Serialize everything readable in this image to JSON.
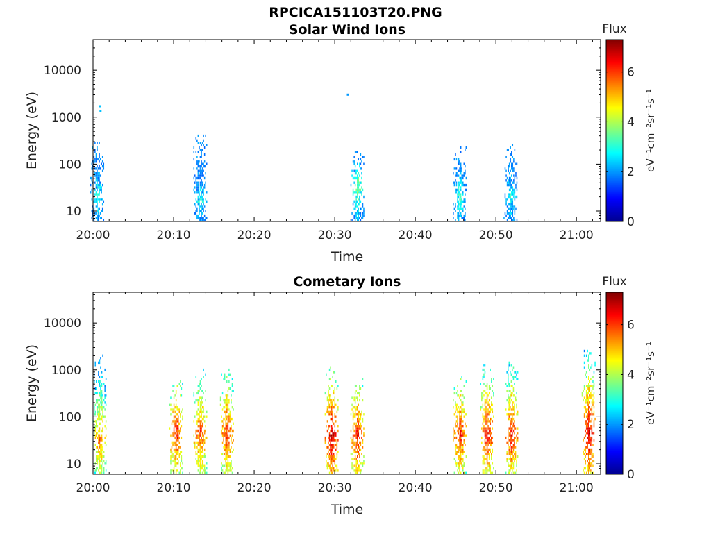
{
  "figure_title": "RPCICA151103T20.PNG",
  "colormap": [
    "#00008f",
    "#0000ff",
    "#0080ff",
    "#00ffff",
    "#80ff80",
    "#ffff00",
    "#ff8000",
    "#ff0000",
    "#800000"
  ],
  "chart_data": [
    {
      "type": "heatmap",
      "title": "Solar Wind Ions",
      "xlabel": "Time",
      "ylabel": "Energy (eV)",
      "xlim": [
        "20:00",
        "21:03"
      ],
      "xticks": [
        "20:00",
        "20:10",
        "20:20",
        "20:30",
        "20:40",
        "20:50",
        "21:00"
      ],
      "y_scale": "log",
      "ylim": [
        6,
        45000
      ],
      "yticks": [
        10,
        100,
        1000,
        10000
      ],
      "colorbar": {
        "label": "Flux",
        "unit": "eV⁻¹cm⁻²sr⁻¹s⁻¹",
        "range": [
          0,
          7.3
        ],
        "ticks": [
          0,
          2,
          4,
          6
        ]
      },
      "bursts": [
        {
          "t": 0.5,
          "e_max": 300,
          "peak": 3.0,
          "core": 20
        },
        {
          "t": 13.3,
          "e_max": 380,
          "peak": 3.0,
          "core": 15
        },
        {
          "t": 32.8,
          "e_max": 180,
          "peak": 3.7,
          "core": 30
        },
        {
          "t": 45.5,
          "e_max": 220,
          "peak": 3.3,
          "core": 20
        },
        {
          "t": 51.8,
          "e_max": 260,
          "peak": 3.0,
          "core": 20
        }
      ],
      "isolated_points": [
        {
          "t": 0.7,
          "e": 1700,
          "flux": 2.3
        },
        {
          "t": 0.8,
          "e": 1350,
          "flux": 2.3
        },
        {
          "t": 31.5,
          "e": 3000,
          "flux": 2.0
        }
      ]
    },
    {
      "type": "heatmap",
      "title": "Cometary Ions",
      "xlabel": "Time",
      "ylabel": "Energy (eV)",
      "xlim": [
        "20:00",
        "21:03"
      ],
      "xticks": [
        "20:00",
        "20:10",
        "20:20",
        "20:30",
        "20:40",
        "20:50",
        "21:00"
      ],
      "y_scale": "log",
      "ylim": [
        6,
        45000
      ],
      "yticks": [
        10,
        100,
        1000,
        10000
      ],
      "colorbar": {
        "label": "Flux",
        "unit": "eV⁻¹cm⁻²sr⁻¹s⁻¹",
        "range": [
          0,
          7.3
        ],
        "ticks": [
          0,
          2,
          4,
          6
        ]
      },
      "bursts": [
        {
          "t": 0.8,
          "e_max": 2000,
          "peak": 5.6,
          "core": 30
        },
        {
          "t": 10.3,
          "e_max": 550,
          "peak": 6.3,
          "core": 40
        },
        {
          "t": 13.3,
          "e_max": 1000,
          "peak": 6.0,
          "core": 40
        },
        {
          "t": 16.6,
          "e_max": 1000,
          "peak": 6.2,
          "core": 40
        },
        {
          "t": 29.6,
          "e_max": 1100,
          "peak": 6.8,
          "core": 35
        },
        {
          "t": 32.8,
          "e_max": 600,
          "peak": 6.4,
          "core": 35
        },
        {
          "t": 45.5,
          "e_max": 750,
          "peak": 6.3,
          "core": 40
        },
        {
          "t": 48.9,
          "e_max": 1300,
          "peak": 6.5,
          "core": 40
        },
        {
          "t": 51.9,
          "e_max": 1400,
          "peak": 6.4,
          "core": 40
        },
        {
          "t": 61.5,
          "e_max": 2800,
          "peak": 6.8,
          "core": 40
        }
      ],
      "isolated_points": []
    }
  ]
}
